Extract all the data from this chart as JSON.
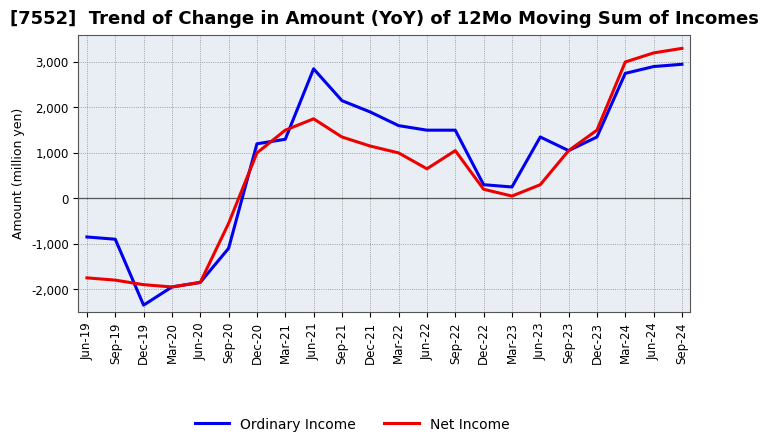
{
  "title": "[7552]  Trend of Change in Amount (YoY) of 12Mo Moving Sum of Incomes",
  "ylabel": "Amount (million yen)",
  "x_labels": [
    "Jun-19",
    "Sep-19",
    "Dec-19",
    "Mar-20",
    "Jun-20",
    "Sep-20",
    "Dec-20",
    "Mar-21",
    "Jun-21",
    "Sep-21",
    "Dec-21",
    "Mar-22",
    "Jun-22",
    "Sep-22",
    "Dec-22",
    "Mar-23",
    "Jun-23",
    "Sep-23",
    "Dec-23",
    "Mar-24",
    "Jun-24",
    "Sep-24"
  ],
  "ordinary_income": [
    -850,
    -900,
    -2350,
    -1950,
    -1850,
    -1100,
    1200,
    1300,
    2850,
    2150,
    1900,
    1600,
    1500,
    1500,
    300,
    250,
    1350,
    1050,
    1350,
    2750,
    2900,
    2950
  ],
  "net_income": [
    -1750,
    -1800,
    -1900,
    -1950,
    -1850,
    -550,
    1000,
    1500,
    1750,
    1350,
    1150,
    1000,
    650,
    1050,
    200,
    50,
    300,
    1050,
    1500,
    3000,
    3200,
    3300
  ],
  "ordinary_color": "#0000EE",
  "net_color": "#EE0000",
  "ylim": [
    -2500,
    3600
  ],
  "yticks": [
    -2000,
    -1000,
    0,
    1000,
    2000,
    3000
  ],
  "plot_bg_color": "#E8EEF4",
  "background_color": "#FFFFFF",
  "grid_color": "#888888",
  "legend_labels": [
    "Ordinary Income",
    "Net Income"
  ],
  "title_fontsize": 13,
  "axis_fontsize": 9,
  "tick_fontsize": 8.5,
  "linewidth": 2.2
}
